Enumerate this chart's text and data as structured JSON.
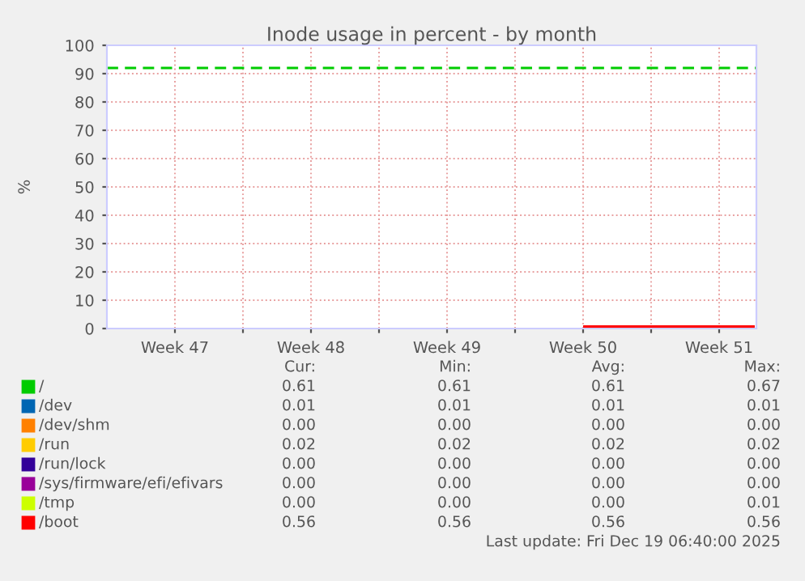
{
  "chart_data": {
    "type": "line",
    "title": "Inode usage in percent - by month",
    "ylabel": "%",
    "xlim": [
      "2025-11-17",
      "2025-12-20T10:00"
    ],
    "ylim": [
      0,
      100
    ],
    "xticks": [
      {
        "value": "2025-11-20T12:00",
        "label": "Week 47"
      },
      {
        "value": "2025-11-24",
        "label": null
      },
      {
        "value": "2025-11-27T12:00",
        "label": "Week 48"
      },
      {
        "value": "2025-12-01",
        "label": null
      },
      {
        "value": "2025-12-04T12:00",
        "label": "Week 49"
      },
      {
        "value": "2025-12-08",
        "label": null
      },
      {
        "value": "2025-12-11T12:00",
        "label": "Week 50"
      },
      {
        "value": "2025-12-15",
        "label": null
      },
      {
        "value": "2025-12-18T12:00",
        "label": "Week 51"
      }
    ],
    "yticks": [
      0,
      10,
      20,
      30,
      40,
      50,
      60,
      70,
      80,
      90,
      100
    ],
    "grid": true,
    "legend": "bottom",
    "series": [
      {
        "name": "/",
        "color": "#00cc00"
      },
      {
        "name": "/dev",
        "color": "#0066b3"
      },
      {
        "name": "/dev/shm",
        "color": "#ff8000"
      },
      {
        "name": "/run",
        "color": "#ffcc00"
      },
      {
        "name": "/run/lock",
        "color": "#330099"
      },
      {
        "name": "/sys/firmware/efi/efivars",
        "color": "#990099"
      },
      {
        "name": "/tmp",
        "color": "#ccff00"
      },
      {
        "name": "/boot",
        "color": "#ff0000",
        "x": [
          "2025-12-11T14:00",
          "2025-12-20T06:00"
        ],
        "values": [
          0.56,
          0.56
        ]
      }
    ],
    "ref_lines": [
      {
        "axis": "y",
        "value": 92,
        "color": "#00cc00",
        "line_style": "dashed"
      }
    ],
    "annotations": [
      "Cur:",
      "Min:",
      "Avg:",
      "Max:",
      "0.61",
      "0.61",
      "0.61",
      "0.67",
      "0.01",
      "0.01",
      "0.01",
      "0.01",
      "0.00",
      "0.00",
      "0.00",
      "0.00",
      "0.02",
      "0.02",
      "0.02",
      "0.02",
      "0.00",
      "0.00",
      "0.00",
      "0.00",
      "0.00",
      "0.00",
      "0.00",
      "0.00",
      "0.00",
      "0.00",
      "0.00",
      "0.01",
      "0.56",
      "0.56",
      "0.56",
      "0.56",
      "Last update: Fri Dec 19 06:40:00 2025"
    ]
  }
}
